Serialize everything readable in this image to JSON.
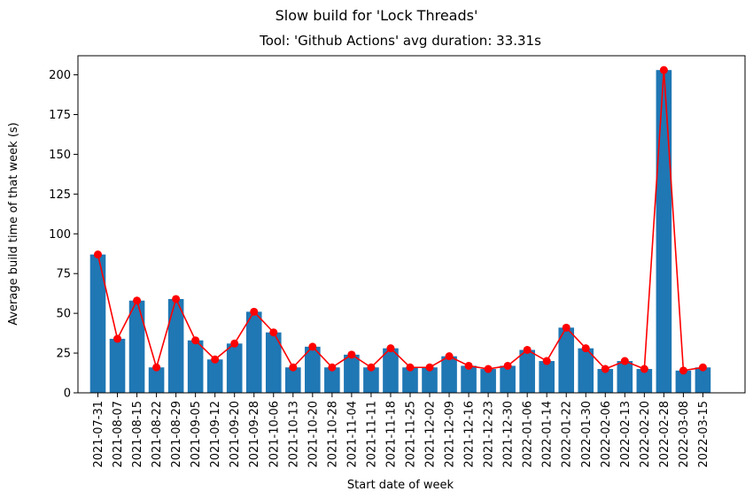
{
  "chart_data": {
    "type": "bar",
    "suptitle": "Slow build for 'Lock Threads'",
    "title": "Tool: 'Github Actions' avg duration: 33.31s",
    "xlabel": "Start date of week",
    "ylabel": "Average build time of that week (s)",
    "ylim": [
      0,
      212
    ],
    "yticks": [
      0,
      25,
      50,
      75,
      100,
      125,
      150,
      175,
      200
    ],
    "grid": false,
    "categories": [
      "2021-07-31",
      "2021-08-07",
      "2021-08-15",
      "2021-08-22",
      "2021-08-29",
      "2021-09-05",
      "2021-09-12",
      "2021-09-20",
      "2021-09-28",
      "2021-10-06",
      "2021-10-13",
      "2021-10-20",
      "2021-10-28",
      "2021-11-04",
      "2021-11-11",
      "2021-11-18",
      "2021-11-25",
      "2021-12-02",
      "2021-12-09",
      "2021-12-16",
      "2021-12-23",
      "2021-12-30",
      "2022-01-06",
      "2022-01-14",
      "2022-01-22",
      "2022-01-30",
      "2022-02-06",
      "2022-02-13",
      "2022-02-20",
      "2022-02-28",
      "2022-03-08",
      "2022-03-15"
    ],
    "series": [
      {
        "kind": "bar",
        "color": "#1f77b4",
        "values": [
          87,
          34,
          58,
          16,
          59,
          33,
          21,
          31,
          51,
          38,
          16,
          29,
          16,
          24,
          16,
          28,
          16,
          16,
          23,
          17,
          15,
          17,
          27,
          20,
          41,
          28,
          15,
          20,
          15,
          203,
          14,
          16
        ]
      },
      {
        "kind": "line",
        "color": "#ff0000",
        "marker": "circle",
        "values": [
          87,
          34,
          58,
          16,
          59,
          33,
          21,
          31,
          51,
          38,
          16,
          29,
          16,
          24,
          16,
          28,
          16,
          16,
          23,
          17,
          15,
          17,
          27,
          20,
          41,
          28,
          15,
          20,
          15,
          203,
          14,
          16
        ]
      }
    ]
  }
}
